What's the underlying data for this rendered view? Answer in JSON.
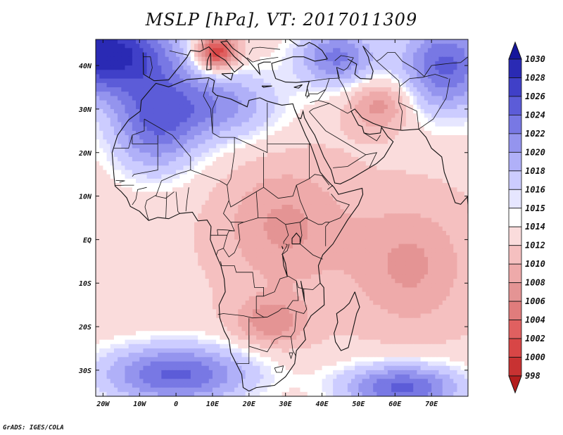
{
  "title": "MSLP [hPa], VT: 2017011309",
  "credit": "GrADS: IGES/COLA",
  "map": {
    "variable": "MSLP",
    "units": "hPa",
    "valid_time": "2017011309",
    "projection": "latlon",
    "lon_range": [
      -22,
      80
    ],
    "lat_range": [
      -36,
      46
    ],
    "x_ticks": [
      {
        "lon": -20,
        "label": "20W"
      },
      {
        "lon": -10,
        "label": "10W"
      },
      {
        "lon": 0,
        "label": "0"
      },
      {
        "lon": 10,
        "label": "10E"
      },
      {
        "lon": 20,
        "label": "20E"
      },
      {
        "lon": 30,
        "label": "30E"
      },
      {
        "lon": 40,
        "label": "40E"
      },
      {
        "lon": 50,
        "label": "50E"
      },
      {
        "lon": 60,
        "label": "60E"
      },
      {
        "lon": 70,
        "label": "70E"
      }
    ],
    "y_ticks": [
      {
        "lat": 40,
        "label": "40N"
      },
      {
        "lat": 30,
        "label": "30N"
      },
      {
        "lat": 20,
        "label": "20N"
      },
      {
        "lat": 10,
        "label": "10N"
      },
      {
        "lat": 0,
        "label": "EQ"
      },
      {
        "lat": -10,
        "label": "10S"
      },
      {
        "lat": -20,
        "label": "20S"
      },
      {
        "lat": -30,
        "label": "30S"
      }
    ],
    "pressure_centers": [
      {
        "lon": -20,
        "lat": 43,
        "value": 1030,
        "sx": 14,
        "sy": 7,
        "amp": 17
      },
      {
        "lon": -6,
        "lat": 26,
        "value": 1023,
        "sx": 9,
        "sy": 8,
        "amp": 10
      },
      {
        "lon": 12,
        "lat": 31,
        "value": 1022,
        "sx": 12,
        "sy": 6,
        "amp": 8
      },
      {
        "lon": 44,
        "lat": 42,
        "value": 1023,
        "sx": 8,
        "sy": 5,
        "amp": 10
      },
      {
        "lon": 74,
        "lat": 40,
        "value": 1026,
        "sx": 9,
        "sy": 8,
        "amp": 12
      },
      {
        "lon": 11,
        "lat": 43,
        "value": 1001,
        "sx": 4,
        "sy": 3,
        "amp": -14
      },
      {
        "lon": 56,
        "lat": 31,
        "value": 1008,
        "sx": 6,
        "sy": 4,
        "amp": -6
      },
      {
        "lon": 30,
        "lat": 3,
        "value": 1008,
        "sx": 12,
        "sy": 10,
        "amp": -5
      },
      {
        "lon": 64,
        "lat": -6,
        "value": 1008,
        "sx": 11,
        "sy": 10,
        "amp": -5
      },
      {
        "lon": 26,
        "lat": -19,
        "value": 1007,
        "sx": 7,
        "sy": 4,
        "amp": -6
      },
      {
        "lon": 0,
        "lat": -31,
        "value": 1024,
        "sx": 15,
        "sy": 5,
        "amp": 12
      },
      {
        "lon": 62,
        "lat": -34,
        "value": 1024,
        "sx": 12,
        "sy": 4,
        "amp": 12
      }
    ]
  },
  "colorbar": {
    "levels": [
      998,
      1000,
      1002,
      1004,
      1006,
      1008,
      1010,
      1012,
      1014,
      1015,
      1016,
      1018,
      1020,
      1022,
      1024,
      1026,
      1028,
      1030
    ],
    "labels": [
      "998",
      "1000",
      "1002",
      "1004",
      "1006",
      "1008",
      "1010",
      "1012",
      "1014",
      "1015",
      "1016",
      "1018",
      "1020",
      "1022",
      "1024",
      "1026",
      "1028",
      "1030"
    ],
    "colors": [
      "#b41e1e",
      "#c83232",
      "#d84646",
      "#e06060",
      "#e07c7c",
      "#e49494",
      "#eeaaaa",
      "#f5c0c0",
      "#fadcdc",
      "#ffffff",
      "#e6e6ff",
      "#ccccff",
      "#b0b0f8",
      "#9494ee",
      "#7878e4",
      "#5c5cd8",
      "#4040c8",
      "#2a2ab4",
      "#16169c"
    ]
  }
}
